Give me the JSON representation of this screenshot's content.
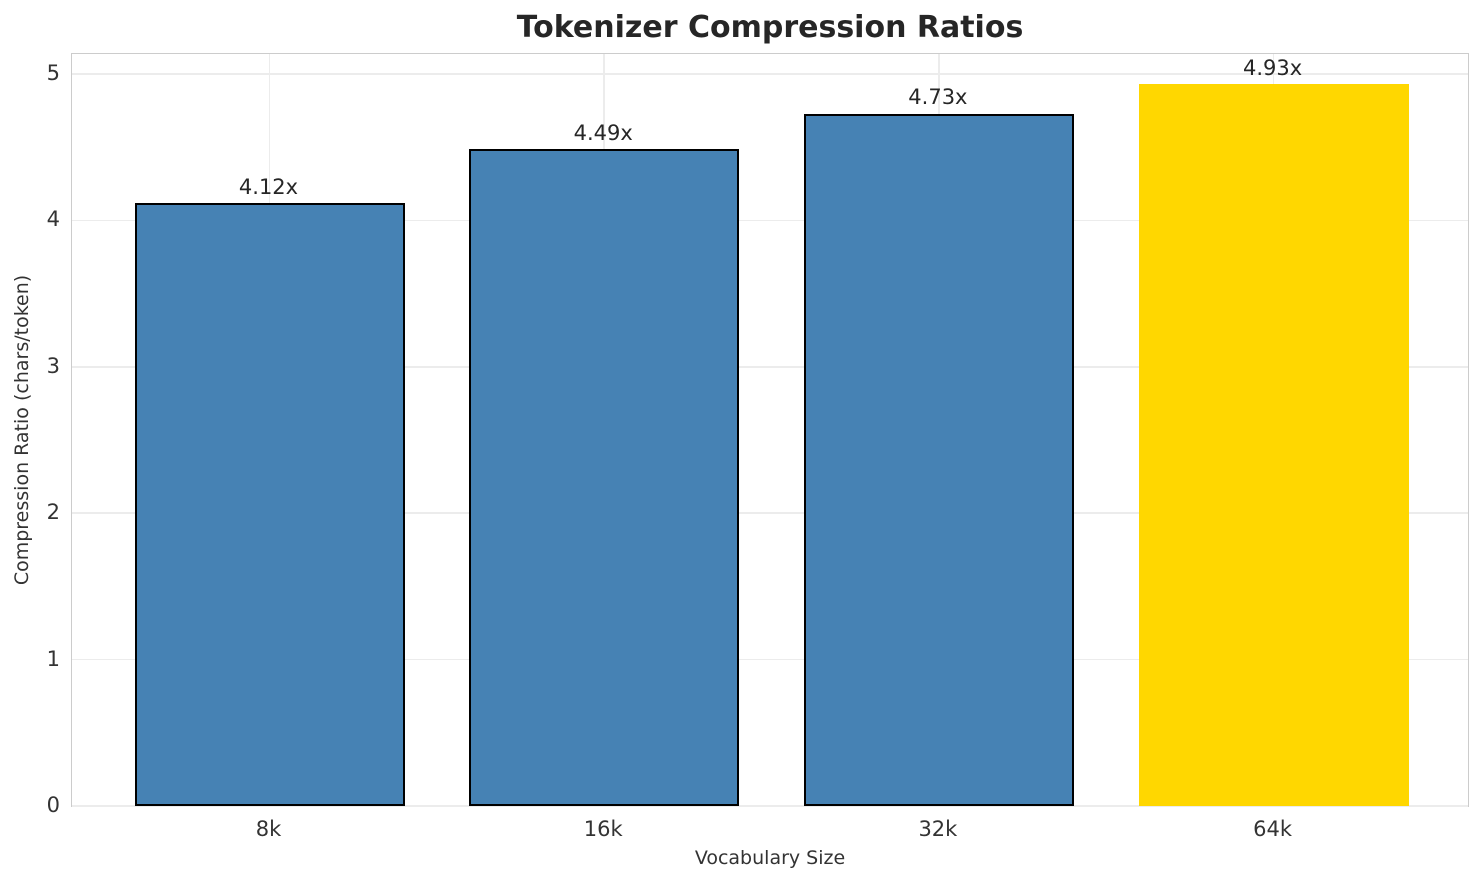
{
  "chart_data": {
    "type": "bar",
    "title": "Tokenizer Compression Ratios",
    "xlabel": "Vocabulary Size",
    "ylabel": "Compression Ratio (chars/token)",
    "categories": [
      "8k",
      "16k",
      "32k",
      "64k"
    ],
    "values": [
      4.12,
      4.49,
      4.73,
      4.93
    ],
    "bar_labels": [
      "4.12x",
      "4.49x",
      "4.73x",
      "4.93x"
    ],
    "bar_colors": [
      "#4682B4",
      "#4682B4",
      "#4682B4",
      "#FFD700"
    ],
    "bar_edge_colors": [
      "#000000",
      "#000000",
      "#000000",
      "none"
    ],
    "yticks": [
      "0",
      "1",
      "2",
      "3",
      "4",
      "5"
    ],
    "ytick_values": [
      0,
      1,
      2,
      3,
      4,
      5
    ],
    "ylim": [
      0,
      5.15
    ],
    "grid": true,
    "legend_position": "none",
    "colors": {
      "default_bar": "#4682B4",
      "highlight_bar": "#FFD700",
      "bar_edge": "#000000",
      "grid": "#ececec",
      "spine": "#cccccc",
      "title_text": "#262626",
      "tick_text": "#333333"
    }
  }
}
